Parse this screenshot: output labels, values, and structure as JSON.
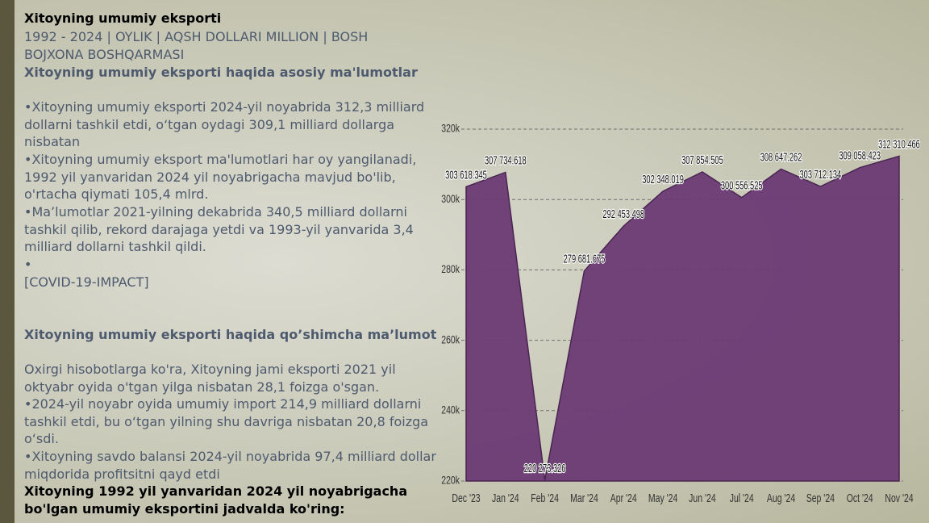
{
  "slide": {
    "title": "Xitoyning umumiy eksporti",
    "subtitle": "1992 - 2024 | OYLIK | AQSH DOLLARI MILLION | BOSH BOJXONA BOSHQARMASI",
    "heading": "Xitoyning umumiy eksporti haqida asosiy ma'lumotlar",
    "points": [
      "•Xitoyning umumiy eksporti 2024-yil noyabrida 312,3 milliard dollarni tashkil etdi, o‘tgan oydagi 309,1 milliard dollarga nisbatan",
      "•Xitoyning umumiy eksport ma'lumotlari har oy yangilanadi, 1992 yil yanvaridan 2024 yil noyabrigacha mavjud bo'lib, o'rtacha qiymati 105,4 mlrd.",
      "•Ma’lumotlar 2021-yilning dekabrida 340,5 milliard dollarni tashkil qilib, rekord darajaga yetdi va 1993-yil yanvarida 3,4 milliard dollarni tashkil qildi.",
      "•",
      "[COVID-19-IMPACT]"
    ],
    "heading2": "Xitoyning umumiy eksporti haqida qo’shimcha ma’lumot",
    "points2": [
      "Oxirgi hisobotlarga ko'ra, Xitoyning jami eksporti 2021 yil oktyabr oyida o'tgan yilga nisbatan 28,1 foizga o'sgan.",
      "•2024-yil noyabr oyida umumiy import 214,9 milliard dollarni tashkil etdi, bu o‘tgan yilning shu davriga nisbatan 20,8 foizga o‘sdi.",
      "•Xitoyning savdo balansi 2024-yil noyabrida 97,4 milliard dollar miqdorida profitsitni qayd etdi"
    ],
    "footer": "Xitoyning 1992 yil yanvaridan 2024 yil noyabrigacha bo'lgan umumiy eksportini jadvalda ko'ring:"
  },
  "chart_data": {
    "type": "area",
    "categories": [
      "Dec '23",
      "Jan '24",
      "Feb '24",
      "Mar '24",
      "Apr '24",
      "May '24",
      "Jun '24",
      "Jul '24",
      "Aug '24",
      "Sep '24",
      "Oct '24",
      "Nov '24"
    ],
    "values": [
      303618.345,
      307734.618,
      220273.326,
      279681.675,
      292453.498,
      302348.019,
      307854.505,
      300556.525,
      308647.262,
      303712.134,
      309058.423,
      312310.466
    ],
    "value_labels": [
      "303 618.345",
      "307 734.618",
      "220 273.326",
      "279 681.675",
      "292 453.498",
      "302 348.019",
      "307 854.505",
      "300 556.525",
      "308 647.262",
      "303 712.134",
      "309 058.423",
      "312 310.466"
    ],
    "color": "#6b3a74",
    "ylim": [
      220000,
      320000
    ],
    "yticks": [
      {
        "value": 220000,
        "label": "220k"
      },
      {
        "value": 240000,
        "label": "240k"
      },
      {
        "value": 260000,
        "label": "260k"
      },
      {
        "value": 280000,
        "label": "280k"
      },
      {
        "value": 300000,
        "label": "300k"
      },
      {
        "value": 320000,
        "label": "320k"
      }
    ],
    "grid": true
  }
}
